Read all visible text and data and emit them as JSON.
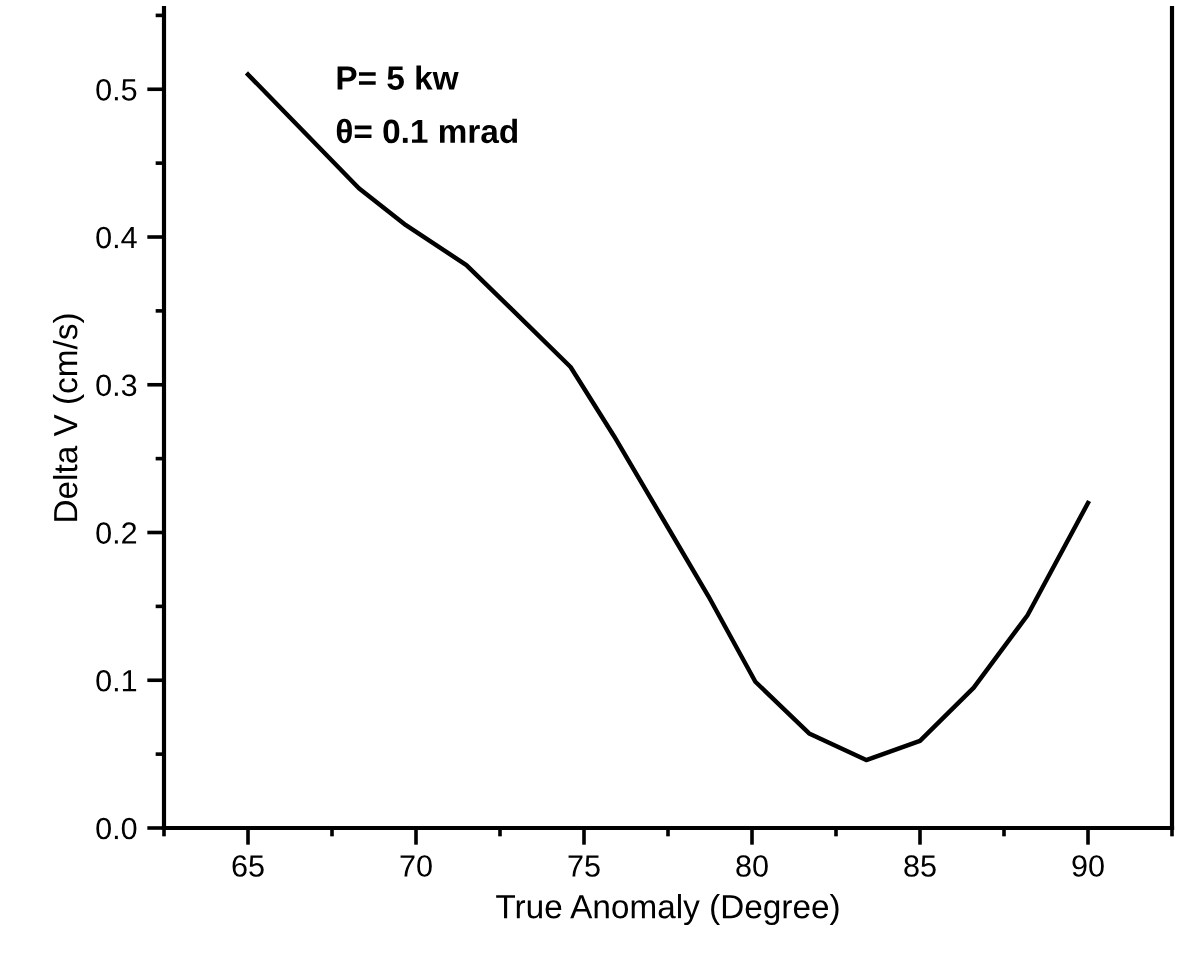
{
  "chart_data": {
    "type": "line",
    "xlabel": "True Anomaly (Degree)",
    "ylabel": "Delta V (cm/s)",
    "annotations": [
      "P= 5 kw",
      "θ= 0.1 mrad"
    ],
    "series": [
      {
        "color": "#000000",
        "x": [
          65,
          68.3,
          69.7,
          71.5,
          73.3,
          74.6,
          75.9,
          77.3,
          78.7,
          80.1,
          81.7,
          83.4,
          85.0,
          86.6,
          88.2,
          90
        ],
        "values": [
          0.51,
          0.433,
          0.408,
          0.381,
          0.341,
          0.312,
          0.265,
          0.211,
          0.157,
          0.099,
          0.064,
          0.046,
          0.059,
          0.095,
          0.144,
          0.22
        ]
      }
    ],
    "xlim": [
      62.5,
      92.5
    ],
    "ylim": [
      0,
      0.555
    ],
    "xticks": [
      65,
      70,
      75,
      80,
      85,
      90
    ],
    "yticks": [
      {
        "value": 0,
        "label": "0.0"
      },
      0.1,
      0.2,
      0.3,
      0.4,
      0.5
    ],
    "grid": false,
    "legend": false,
    "marker": "none",
    "line_style": "solid"
  }
}
